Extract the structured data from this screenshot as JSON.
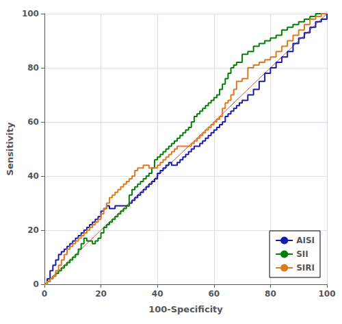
{
  "chart_data": {
    "type": "step",
    "xlabel": "100-Specificity",
    "ylabel": "Sensitivity",
    "xlim": [
      0,
      100
    ],
    "ylim": [
      0,
      100
    ],
    "xticks": [
      0,
      20,
      40,
      60,
      80,
      100
    ],
    "yticks": [
      0,
      20,
      40,
      60,
      80,
      100
    ],
    "grid": true,
    "legend": "lower right",
    "series": [
      {
        "type": "line",
        "color": "#c0504d",
        "x": [
          0,
          100
        ],
        "values": [
          0,
          100
        ]
      },
      {
        "name": "AISI",
        "color": "#1a1aaa",
        "x": [
          0,
          1,
          2,
          3,
          4,
          5,
          6,
          7,
          8,
          9,
          10,
          11,
          12,
          13,
          14,
          15,
          16,
          17,
          18,
          19,
          20,
          21,
          22,
          23,
          24,
          25,
          26,
          27,
          28,
          29,
          30,
          31,
          32,
          33,
          34,
          35,
          36,
          37,
          38,
          39,
          40,
          41,
          42,
          43,
          44,
          45,
          46,
          47,
          48,
          49,
          50,
          51,
          52,
          53,
          54,
          55,
          56,
          57,
          58,
          59,
          60,
          61,
          62,
          63,
          64,
          65,
          66,
          67,
          68,
          69,
          70,
          72,
          74,
          76,
          78,
          80,
          82,
          84,
          86,
          88,
          90,
          92,
          94,
          96,
          98,
          100
        ],
        "values": [
          0,
          2,
          5,
          7,
          9,
          11,
          12,
          13,
          14,
          15,
          16,
          17,
          18,
          19,
          20,
          21,
          22,
          23,
          24,
          25,
          27,
          28,
          29,
          28,
          28,
          29,
          29,
          29,
          29,
          29,
          30,
          31,
          32,
          33,
          34,
          35,
          36,
          37,
          38,
          39,
          41,
          42,
          43,
          44,
          45,
          44,
          44,
          45,
          46,
          47,
          48,
          49,
          50,
          51,
          51,
          52,
          53,
          54,
          55,
          56,
          57,
          58,
          59,
          60,
          62,
          63,
          64,
          65,
          66,
          67,
          68,
          70,
          72,
          75,
          78,
          80,
          82,
          84,
          86,
          89,
          91,
          93,
          95,
          97,
          98,
          100
        ]
      },
      {
        "name": "SII",
        "color": "#008000",
        "x": [
          0,
          1,
          2,
          3,
          4,
          5,
          6,
          7,
          8,
          9,
          10,
          11,
          12,
          13,
          14,
          15,
          16,
          17,
          18,
          19,
          20,
          21,
          22,
          23,
          24,
          25,
          26,
          27,
          28,
          29,
          30,
          31,
          32,
          33,
          34,
          35,
          36,
          37,
          38,
          39,
          40,
          41,
          42,
          43,
          44,
          45,
          46,
          47,
          48,
          49,
          50,
          51,
          52,
          53,
          54,
          55,
          56,
          57,
          58,
          59,
          60,
          61,
          62,
          63,
          64,
          65,
          66,
          67,
          68,
          70,
          72,
          74,
          76,
          78,
          80,
          82,
          84,
          86,
          88,
          90,
          92,
          94,
          96,
          98,
          100
        ],
        "values": [
          0,
          1,
          2,
          3,
          4,
          5,
          6,
          7,
          8,
          9,
          10,
          11,
          13,
          15,
          17,
          16,
          16,
          15,
          16,
          17,
          19,
          21,
          22,
          23,
          24,
          25,
          26,
          27,
          28,
          29,
          33,
          35,
          36,
          37,
          38,
          39,
          40,
          41,
          43,
          46,
          47,
          48,
          49,
          50,
          51,
          52,
          53,
          54,
          55,
          56,
          57,
          58,
          60,
          62,
          63,
          64,
          65,
          66,
          67,
          68,
          69,
          70,
          72,
          74,
          76,
          78,
          80,
          81,
          82,
          85,
          86,
          88,
          89,
          90,
          91,
          92,
          94,
          95,
          96,
          97,
          98,
          99,
          100,
          100,
          100
        ]
      },
      {
        "name": "SIRI",
        "color": "#e07820",
        "x": [
          0,
          1,
          2,
          3,
          4,
          5,
          6,
          7,
          8,
          9,
          10,
          11,
          12,
          13,
          14,
          15,
          16,
          17,
          18,
          19,
          20,
          21,
          22,
          23,
          24,
          25,
          26,
          27,
          28,
          29,
          30,
          31,
          32,
          33,
          34,
          35,
          36,
          37,
          38,
          39,
          40,
          41,
          42,
          43,
          44,
          45,
          46,
          47,
          48,
          49,
          50,
          51,
          52,
          53,
          54,
          55,
          56,
          57,
          58,
          59,
          60,
          61,
          62,
          63,
          64,
          65,
          66,
          67,
          68,
          70,
          72,
          74,
          76,
          78,
          80,
          82,
          84,
          86,
          88,
          90,
          92,
          94,
          96,
          98,
          100
        ],
        "values": [
          0,
          1,
          2,
          3,
          5,
          7,
          9,
          11,
          13,
          14,
          15,
          16,
          17,
          18,
          19,
          20,
          21,
          22,
          23,
          24,
          26,
          28,
          30,
          32,
          33,
          34,
          35,
          36,
          37,
          38,
          39,
          40,
          42,
          43,
          43,
          44,
          44,
          43,
          43,
          43,
          44,
          45,
          46,
          47,
          48,
          49,
          50,
          51,
          51,
          51,
          51,
          51,
          52,
          53,
          54,
          55,
          56,
          57,
          58,
          59,
          60,
          61,
          62,
          65,
          67,
          68,
          70,
          72,
          75,
          76,
          80,
          81,
          82,
          83,
          84,
          86,
          88,
          90,
          92,
          94,
          96,
          98,
          99,
          100,
          100
        ]
      }
    ]
  }
}
